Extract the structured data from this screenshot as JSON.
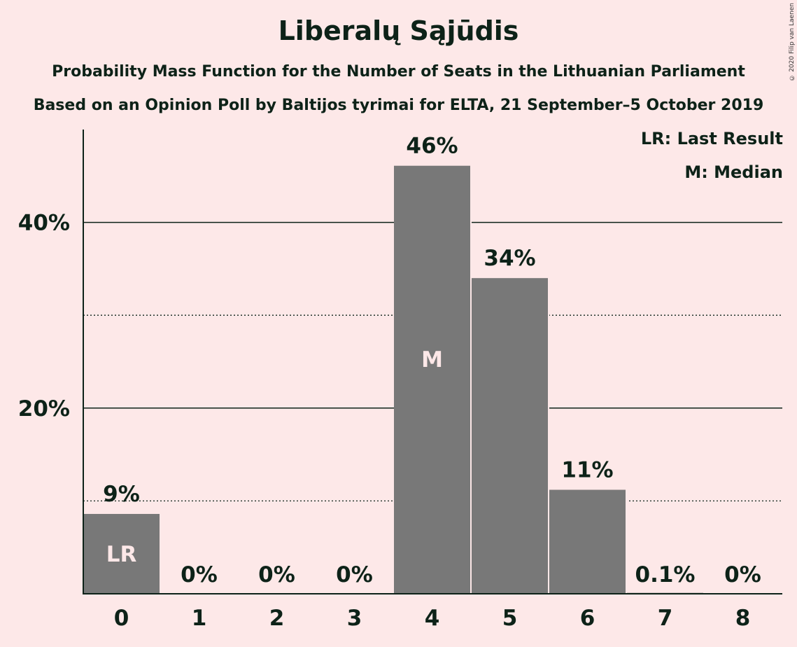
{
  "title": "Liberalų Sąjūdis",
  "subtitle": "Probability Mass Function for the Number of Seats in the Lithuanian Parliament",
  "subtitle2": "Based on an Opinion Poll by Baltijos tyrimai for ELTA, 21 September–5 October 2019",
  "copyright": "© 2020 Filip van Laenen",
  "legend": {
    "last_result": "LR: Last Result",
    "median": "M: Median"
  },
  "colors": {
    "background": "#fde8e8",
    "bar": "#787878",
    "text": "#0d2218",
    "bar_marker_text": "#fde8e8"
  },
  "chart_data": {
    "type": "bar",
    "categories": [
      "0",
      "1",
      "2",
      "3",
      "4",
      "5",
      "6",
      "7",
      "8"
    ],
    "values": [
      8.6,
      0,
      0,
      0,
      46.1,
      34.0,
      11.2,
      0.1,
      0
    ],
    "value_labels": [
      "9%",
      "0%",
      "0%",
      "0%",
      "46%",
      "34%",
      "11%",
      "0.1%",
      "0%"
    ],
    "bar_markers": {
      "0": "LR",
      "4": "M"
    },
    "ylim": [
      0,
      50
    ],
    "yticks": [
      20,
      40
    ],
    "ytick_labels": [
      "20%",
      "40%"
    ],
    "minor_gridlines": [
      10,
      30
    ],
    "xlabel": "",
    "ylabel": "",
    "grid": true,
    "legend_position": "top-right"
  }
}
